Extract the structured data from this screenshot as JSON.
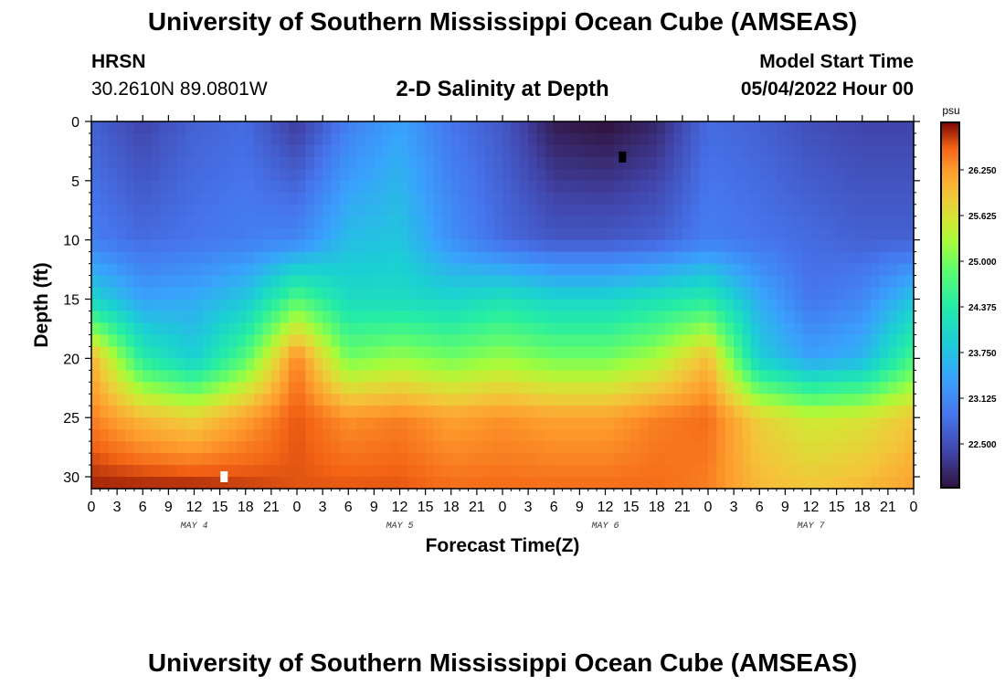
{
  "page": {
    "title": "University of Southern Mississippi Ocean Cube (AMSEAS)",
    "footer_title": "University of Southern Mississippi Ocean Cube (AMSEAS)",
    "station_label": "HRSN",
    "coordinates": "30.2610N  89.0801W",
    "plot_title": "2-D Salinity at Depth",
    "model_start_label": "Model Start Time",
    "model_start_value": "05/04/2022 Hour 00"
  },
  "chart_data": {
    "type": "heatmap",
    "variable": "Salinity",
    "units": "psu",
    "xlabel": "Forecast Time(Z)",
    "ylabel": "Depth (ft)",
    "x_range_hours": [
      0,
      96
    ],
    "x_tick_labels": [
      "0",
      "3",
      "6",
      "9",
      "12",
      "15",
      "18",
      "21",
      "0",
      "3",
      "6",
      "9",
      "12",
      "15",
      "18",
      "21",
      "0",
      "3",
      "6",
      "9",
      "12",
      "15",
      "18",
      "21",
      "0",
      "3",
      "6",
      "9",
      "12",
      "15",
      "18",
      "21",
      "0"
    ],
    "day_labels": [
      "MAY 4",
      "MAY 5",
      "MAY 6",
      "MAY 7"
    ],
    "y_range_ft": [
      0,
      31
    ],
    "y_ticks": [
      0,
      5,
      10,
      15,
      20,
      25,
      30
    ],
    "colorbar_range": [
      21.9,
      26.9
    ],
    "colorbar_ticks": [
      "22.500",
      "23.125",
      "23.750",
      "24.375",
      "25.000",
      "25.625",
      "26.250"
    ],
    "colorbar_tick_values": [
      22.5,
      23.125,
      23.75,
      24.375,
      25.0,
      25.625,
      26.25
    ],
    "grid_x_hours": [
      0,
      6,
      12,
      18,
      24,
      30,
      36,
      42,
      48,
      54,
      60,
      66,
      72,
      78,
      84,
      90,
      96
    ],
    "grid_depth_ft": [
      0,
      10,
      15,
      20,
      25,
      31
    ],
    "salinity_grid": [
      [
        22.7,
        22.4,
        22.7,
        22.8,
        22.3,
        23.0,
        23.4,
        22.9,
        22.6,
        22.0,
        21.9,
        22.1,
        22.8,
        22.7,
        22.5,
        22.4,
        22.4
      ],
      [
        23.0,
        22.8,
        22.9,
        23.0,
        23.1,
        23.7,
        23.8,
        23.2,
        22.8,
        22.6,
        22.6,
        22.7,
        23.0,
        22.9,
        22.8,
        22.7,
        22.7
      ],
      [
        24.0,
        23.4,
        23.5,
        23.8,
        24.8,
        24.1,
        24.1,
        24.0,
        24.2,
        24.0,
        24.0,
        24.2,
        24.4,
        23.5,
        22.9,
        23.1,
        23.8
      ],
      [
        26.1,
        24.4,
        23.9,
        24.8,
        26.4,
        25.0,
        25.2,
        25.0,
        25.2,
        25.0,
        25.0,
        25.3,
        26.0,
        23.9,
        23.4,
        23.6,
        24.7
      ],
      [
        26.4,
        26.0,
        25.8,
        26.2,
        26.6,
        26.3,
        26.4,
        26.2,
        26.3,
        26.2,
        26.2,
        26.4,
        26.5,
        25.8,
        25.5,
        25.6,
        25.9
      ],
      [
        26.8,
        26.8,
        26.8,
        26.7,
        26.6,
        26.6,
        26.6,
        26.5,
        26.5,
        26.5,
        26.5,
        26.5,
        26.4,
        26.0,
        25.9,
        26.0,
        26.2
      ]
    ],
    "markers": [
      {
        "hour": 62,
        "depth_ft": 3,
        "color": "#000000"
      },
      {
        "hour": 15.5,
        "depth_ft": 30,
        "color": "#ffffff"
      }
    ]
  }
}
